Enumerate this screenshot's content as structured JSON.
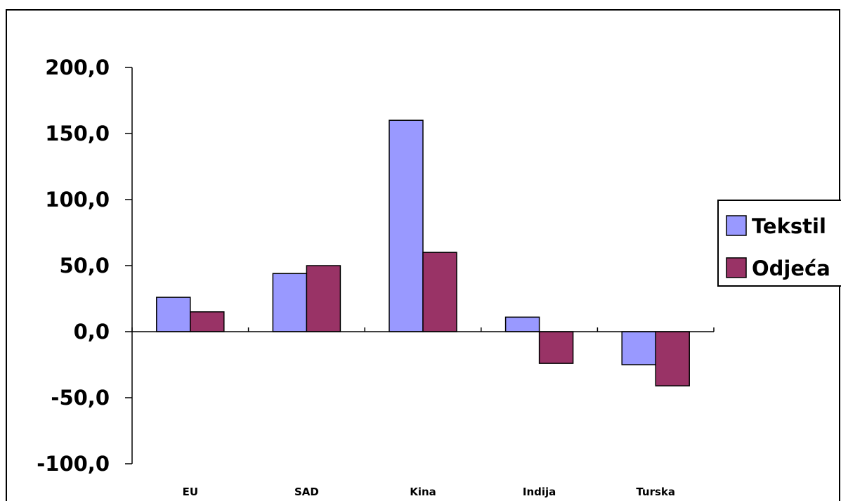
{
  "chart_data": {
    "type": "bar",
    "categories": [
      "EU",
      "SAD",
      "Kina",
      "Indija",
      "Turska"
    ],
    "series": [
      {
        "name": "Tekstil",
        "color": "#9999ff",
        "values": [
          26,
          44,
          160,
          11,
          -25
        ]
      },
      {
        "name": "Odjeća",
        "color": "#993366",
        "values": [
          15,
          50,
          60,
          -24,
          -41
        ]
      }
    ],
    "ylim": [
      -100,
      200
    ],
    "yticks": [
      -100,
      -50,
      0,
      50,
      100,
      150,
      200
    ],
    "ytick_labels": [
      "-100,0",
      "-50,0",
      "0,0",
      "50,0",
      "100,0",
      "150,0",
      "200,0"
    ],
    "title": "",
    "xlabel": "",
    "ylabel": "",
    "grid": false,
    "legend_position": "right"
  }
}
